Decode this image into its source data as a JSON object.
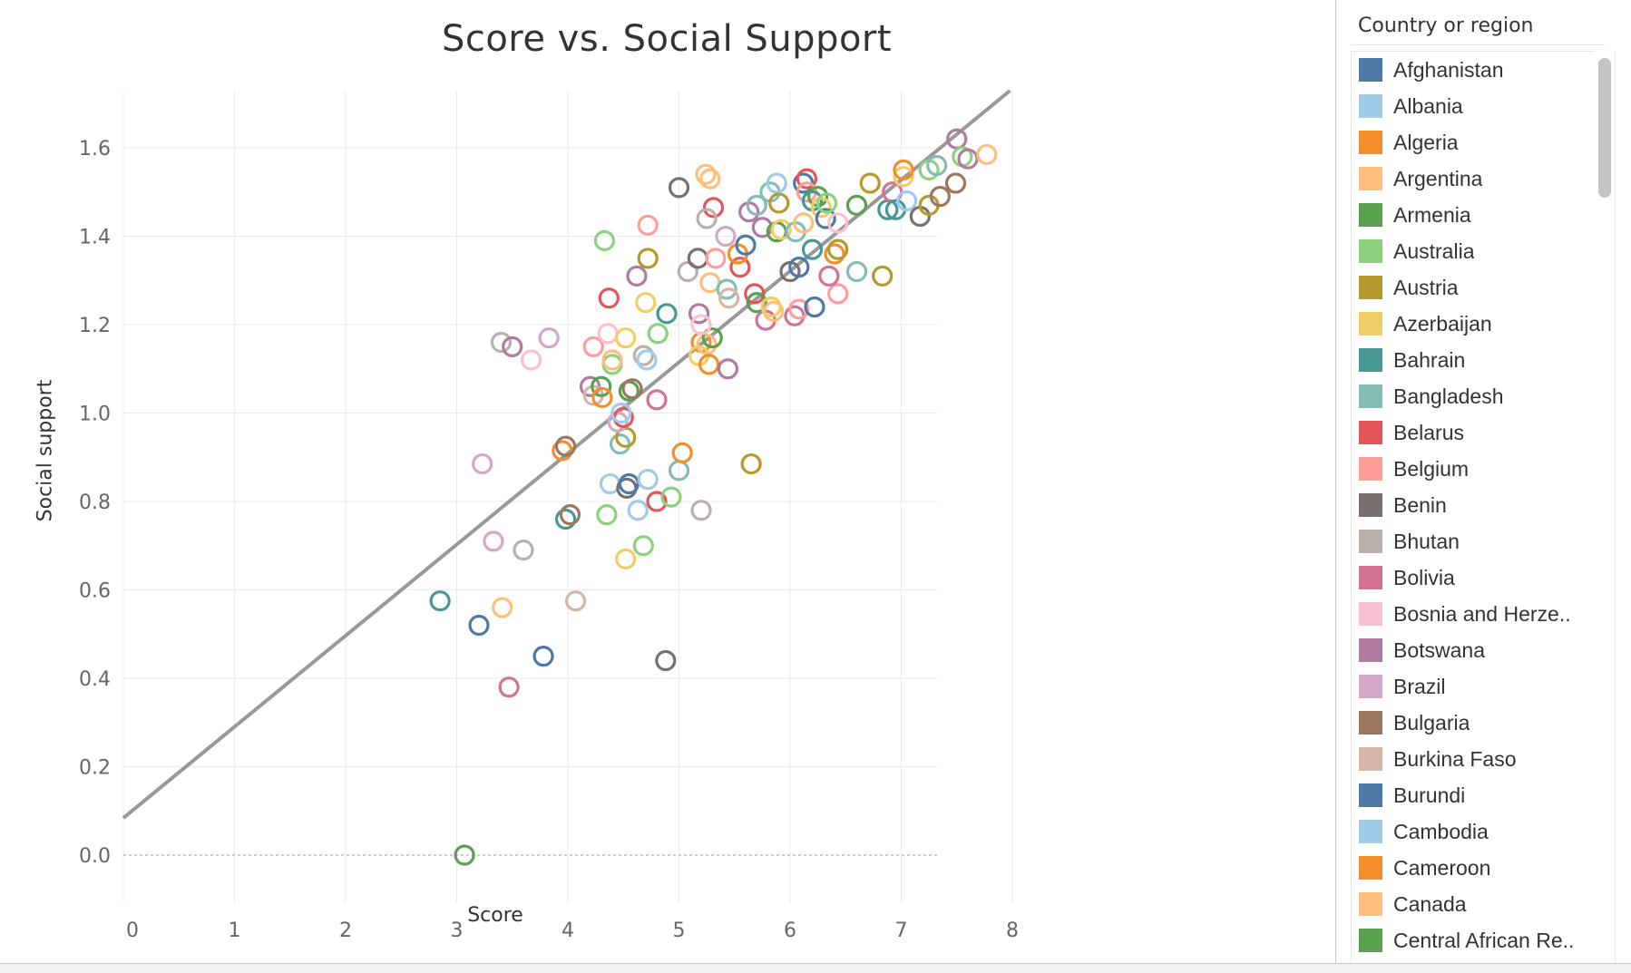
{
  "chart_data": {
    "type": "scatter",
    "title": "Score vs. Social Support",
    "xlabel": "Score",
    "ylabel": "Social support",
    "xlim": [
      0,
      8
    ],
    "ylim": [
      0,
      1.6
    ],
    "x_ticks": [
      0,
      1,
      2,
      3,
      4,
      5,
      6,
      7,
      8
    ],
    "y_ticks": [
      0.0,
      0.2,
      0.4,
      0.6,
      0.8,
      1.0,
      1.2,
      1.4,
      1.6
    ],
    "y_tick_labels": [
      "0.0",
      "0.2",
      "0.4",
      "0.6",
      "0.8",
      "1.0",
      "1.2",
      "1.4",
      "1.6"
    ],
    "grid": true,
    "zero_line": "dashed",
    "trend_line": {
      "slope": 0.2062,
      "intercept": 0.084,
      "color": "#999999"
    },
    "marker": "hollow-circle",
    "legend_position": "right",
    "palette": [
      "#4e79a7",
      "#a0cbe8",
      "#f28e2b",
      "#ffbe7d",
      "#59a14f",
      "#8cd17d",
      "#b6992d",
      "#f1ce63",
      "#499894",
      "#86bcb6",
      "#e15759",
      "#ff9d9a",
      "#79706e",
      "#bab0ac",
      "#d37295",
      "#fabfd2",
      "#b07aa1",
      "#d4a6c8",
      "#9d7660",
      "#d7b5a6"
    ],
    "points": [
      {
        "x": 3.07,
        "y": 0.0,
        "c": "#59a14f"
      },
      {
        "x": 2.85,
        "y": 0.575,
        "c": "#499894"
      },
      {
        "x": 3.2,
        "y": 0.52,
        "c": "#4e79a7"
      },
      {
        "x": 3.41,
        "y": 0.56,
        "c": "#ffbe7d"
      },
      {
        "x": 3.78,
        "y": 0.45,
        "c": "#4e79a7"
      },
      {
        "x": 3.47,
        "y": 0.38,
        "c": "#d37295"
      },
      {
        "x": 4.07,
        "y": 0.575,
        "c": "#d7b5a6"
      },
      {
        "x": 4.88,
        "y": 0.44,
        "c": "#79706e"
      },
      {
        "x": 3.33,
        "y": 0.71,
        "c": "#d4a6c8"
      },
      {
        "x": 3.6,
        "y": 0.69,
        "c": "#bab0ac"
      },
      {
        "x": 3.23,
        "y": 0.885,
        "c": "#d4a6c8"
      },
      {
        "x": 3.98,
        "y": 0.76,
        "c": "#499894"
      },
      {
        "x": 4.02,
        "y": 0.77,
        "c": "#9d7660"
      },
      {
        "x": 4.35,
        "y": 0.77,
        "c": "#8cd17d"
      },
      {
        "x": 4.52,
        "y": 0.67,
        "c": "#f1ce63"
      },
      {
        "x": 4.68,
        "y": 0.7,
        "c": "#8cd17d"
      },
      {
        "x": 4.63,
        "y": 0.78,
        "c": "#a0cbe8"
      },
      {
        "x": 4.38,
        "y": 0.84,
        "c": "#a0cbe8"
      },
      {
        "x": 4.53,
        "y": 0.83,
        "c": "#79706e"
      },
      {
        "x": 4.55,
        "y": 0.84,
        "c": "#4e79a7"
      },
      {
        "x": 4.72,
        "y": 0.85,
        "c": "#a0cbe8"
      },
      {
        "x": 4.8,
        "y": 0.8,
        "c": "#e15759"
      },
      {
        "x": 4.93,
        "y": 0.81,
        "c": "#8cd17d"
      },
      {
        "x": 5.0,
        "y": 0.87,
        "c": "#86bcb6"
      },
      {
        "x": 5.2,
        "y": 0.78,
        "c": "#bab0ac"
      },
      {
        "x": 5.03,
        "y": 0.91,
        "c": "#f28e2b"
      },
      {
        "x": 5.65,
        "y": 0.885,
        "c": "#b6992d"
      },
      {
        "x": 3.95,
        "y": 0.915,
        "c": "#f28e2b"
      },
      {
        "x": 3.98,
        "y": 0.925,
        "c": "#9d7660"
      },
      {
        "x": 4.47,
        "y": 0.93,
        "c": "#86bcb6"
      },
      {
        "x": 4.52,
        "y": 0.945,
        "c": "#b6992d"
      },
      {
        "x": 4.45,
        "y": 0.98,
        "c": "#d4a6c8"
      },
      {
        "x": 4.5,
        "y": 0.99,
        "c": "#e15759"
      },
      {
        "x": 4.48,
        "y": 1.0,
        "c": "#a0cbe8"
      },
      {
        "x": 4.8,
        "y": 1.03,
        "c": "#d37295"
      },
      {
        "x": 4.2,
        "y": 1.06,
        "c": "#b07aa1"
      },
      {
        "x": 4.23,
        "y": 1.04,
        "c": "#d7b5a6"
      },
      {
        "x": 4.3,
        "y": 1.06,
        "c": "#59a14f"
      },
      {
        "x": 4.31,
        "y": 1.035,
        "c": "#f28e2b"
      },
      {
        "x": 4.4,
        "y": 1.11,
        "c": "#8cd17d"
      },
      {
        "x": 4.55,
        "y": 1.05,
        "c": "#59a14f"
      },
      {
        "x": 4.58,
        "y": 1.055,
        "c": "#9d7660"
      },
      {
        "x": 3.4,
        "y": 1.16,
        "c": "#bab0ac"
      },
      {
        "x": 3.5,
        "y": 1.15,
        "c": "#b07aa1"
      },
      {
        "x": 3.67,
        "y": 1.12,
        "c": "#fabfd2"
      },
      {
        "x": 3.83,
        "y": 1.17,
        "c": "#d4a6c8"
      },
      {
        "x": 4.23,
        "y": 1.15,
        "c": "#ff9d9a"
      },
      {
        "x": 4.36,
        "y": 1.18,
        "c": "#fabfd2"
      },
      {
        "x": 4.4,
        "y": 1.12,
        "c": "#ffbe7d"
      },
      {
        "x": 4.52,
        "y": 1.17,
        "c": "#f1ce63"
      },
      {
        "x": 4.68,
        "y": 1.13,
        "c": "#bab0ac"
      },
      {
        "x": 4.71,
        "y": 1.12,
        "c": "#a0cbe8"
      },
      {
        "x": 4.81,
        "y": 1.18,
        "c": "#8cd17d"
      },
      {
        "x": 4.7,
        "y": 1.25,
        "c": "#f1ce63"
      },
      {
        "x": 4.37,
        "y": 1.26,
        "c": "#e15759"
      },
      {
        "x": 4.89,
        "y": 1.225,
        "c": "#499894"
      },
      {
        "x": 5.18,
        "y": 1.225,
        "c": "#b07aa1"
      },
      {
        "x": 5.2,
        "y": 1.16,
        "c": "#f28e2b"
      },
      {
        "x": 5.25,
        "y": 1.155,
        "c": "#ffbe7d"
      },
      {
        "x": 5.3,
        "y": 1.17,
        "c": "#59a14f"
      },
      {
        "x": 5.18,
        "y": 1.13,
        "c": "#f1ce63"
      },
      {
        "x": 5.27,
        "y": 1.11,
        "c": "#f28e2b"
      },
      {
        "x": 5.44,
        "y": 1.1,
        "c": "#b07aa1"
      },
      {
        "x": 5.2,
        "y": 1.2,
        "c": "#fabfd2"
      },
      {
        "x": 5.28,
        "y": 1.295,
        "c": "#ffbe7d"
      },
      {
        "x": 5.08,
        "y": 1.32,
        "c": "#bab0ac"
      },
      {
        "x": 5.17,
        "y": 1.35,
        "c": "#79706e"
      },
      {
        "x": 5.33,
        "y": 1.35,
        "c": "#ff9d9a"
      },
      {
        "x": 5.43,
        "y": 1.28,
        "c": "#86bcb6"
      },
      {
        "x": 5.45,
        "y": 1.26,
        "c": "#d7b5a6"
      },
      {
        "x": 5.55,
        "y": 1.33,
        "c": "#e15759"
      },
      {
        "x": 5.53,
        "y": 1.36,
        "c": "#f28e2b"
      },
      {
        "x": 5.6,
        "y": 1.38,
        "c": "#4e79a7"
      },
      {
        "x": 5.68,
        "y": 1.27,
        "c": "#e15759"
      },
      {
        "x": 5.7,
        "y": 1.25,
        "c": "#59a14f"
      },
      {
        "x": 5.78,
        "y": 1.21,
        "c": "#d37295"
      },
      {
        "x": 5.85,
        "y": 1.23,
        "c": "#ffbe7d"
      },
      {
        "x": 5.83,
        "y": 1.24,
        "c": "#f1ce63"
      },
      {
        "x": 6.04,
        "y": 1.22,
        "c": "#d37295"
      },
      {
        "x": 6.08,
        "y": 1.235,
        "c": "#ff9d9a"
      },
      {
        "x": 6.22,
        "y": 1.24,
        "c": "#4e79a7"
      },
      {
        "x": 6.43,
        "y": 1.27,
        "c": "#ff9d9a"
      },
      {
        "x": 6.0,
        "y": 1.32,
        "c": "#79706e"
      },
      {
        "x": 6.08,
        "y": 1.33,
        "c": "#4e79a7"
      },
      {
        "x": 6.35,
        "y": 1.31,
        "c": "#d37295"
      },
      {
        "x": 6.6,
        "y": 1.32,
        "c": "#86bcb6"
      },
      {
        "x": 6.83,
        "y": 1.31,
        "c": "#b6992d"
      },
      {
        "x": 4.72,
        "y": 1.35,
        "c": "#b6992d"
      },
      {
        "x": 4.62,
        "y": 1.31,
        "c": "#b07aa1"
      },
      {
        "x": 4.33,
        "y": 1.39,
        "c": "#8cd17d"
      },
      {
        "x": 4.72,
        "y": 1.425,
        "c": "#ff9d9a"
      },
      {
        "x": 5.0,
        "y": 1.51,
        "c": "#79706e"
      },
      {
        "x": 5.24,
        "y": 1.54,
        "c": "#ffbe7d"
      },
      {
        "x": 5.28,
        "y": 1.53,
        "c": "#ffbe7d"
      },
      {
        "x": 5.31,
        "y": 1.465,
        "c": "#e15759"
      },
      {
        "x": 5.25,
        "y": 1.44,
        "c": "#bab0ac"
      },
      {
        "x": 5.42,
        "y": 1.4,
        "c": "#d4a6c8"
      },
      {
        "x": 5.63,
        "y": 1.455,
        "c": "#b07aa1"
      },
      {
        "x": 5.7,
        "y": 1.47,
        "c": "#86bcb6"
      },
      {
        "x": 5.75,
        "y": 1.42,
        "c": "#b07aa1"
      },
      {
        "x": 5.82,
        "y": 1.5,
        "c": "#86bcb6"
      },
      {
        "x": 5.88,
        "y": 1.52,
        "c": "#a0cbe8"
      },
      {
        "x": 5.88,
        "y": 1.41,
        "c": "#59a14f"
      },
      {
        "x": 5.9,
        "y": 1.475,
        "c": "#b6992d"
      },
      {
        "x": 5.92,
        "y": 1.415,
        "c": "#f1ce63"
      },
      {
        "x": 6.05,
        "y": 1.41,
        "c": "#86bcb6"
      },
      {
        "x": 6.12,
        "y": 1.43,
        "c": "#ffbe7d"
      },
      {
        "x": 6.12,
        "y": 1.52,
        "c": "#4e79a7"
      },
      {
        "x": 6.15,
        "y": 1.53,
        "c": "#e15759"
      },
      {
        "x": 6.15,
        "y": 1.5,
        "c": "#ff9d9a"
      },
      {
        "x": 6.2,
        "y": 1.48,
        "c": "#499894"
      },
      {
        "x": 6.25,
        "y": 1.49,
        "c": "#59a14f"
      },
      {
        "x": 6.28,
        "y": 1.465,
        "c": "#f1ce63"
      },
      {
        "x": 6.32,
        "y": 1.44,
        "c": "#4e79a7"
      },
      {
        "x": 6.33,
        "y": 1.475,
        "c": "#8cd17d"
      },
      {
        "x": 6.43,
        "y": 1.43,
        "c": "#fabfd2"
      },
      {
        "x": 6.2,
        "y": 1.37,
        "c": "#499894"
      },
      {
        "x": 6.4,
        "y": 1.36,
        "c": "#f28e2b"
      },
      {
        "x": 6.43,
        "y": 1.37,
        "c": "#b6992d"
      },
      {
        "x": 6.6,
        "y": 1.47,
        "c": "#59a14f"
      },
      {
        "x": 6.72,
        "y": 1.52,
        "c": "#b6992d"
      },
      {
        "x": 6.88,
        "y": 1.46,
        "c": "#499894"
      },
      {
        "x": 6.92,
        "y": 1.5,
        "c": "#d37295"
      },
      {
        "x": 6.95,
        "y": 1.46,
        "c": "#499894"
      },
      {
        "x": 7.02,
        "y": 1.535,
        "c": "#f1ce63"
      },
      {
        "x": 7.02,
        "y": 1.55,
        "c": "#f28e2b"
      },
      {
        "x": 7.05,
        "y": 1.48,
        "c": "#a0cbe8"
      },
      {
        "x": 7.17,
        "y": 1.445,
        "c": "#79706e"
      },
      {
        "x": 7.25,
        "y": 1.47,
        "c": "#b6992d"
      },
      {
        "x": 7.25,
        "y": 1.55,
        "c": "#8cd17d"
      },
      {
        "x": 7.32,
        "y": 1.56,
        "c": "#86bcb6"
      },
      {
        "x": 7.35,
        "y": 1.49,
        "c": "#9d7660"
      },
      {
        "x": 7.49,
        "y": 1.52,
        "c": "#9d7660"
      },
      {
        "x": 7.5,
        "y": 1.62,
        "c": "#b07aa1"
      },
      {
        "x": 7.55,
        "y": 1.58,
        "c": "#8cd17d"
      },
      {
        "x": 7.6,
        "y": 1.575,
        "c": "#b07aa1"
      },
      {
        "x": 7.77,
        "y": 1.585,
        "c": "#ffbe7d"
      }
    ]
  },
  "legend": {
    "title": "Country or region",
    "items": [
      {
        "label": "Afghanistan",
        "color": "#4e79a7"
      },
      {
        "label": "Albania",
        "color": "#a0cbe8"
      },
      {
        "label": "Algeria",
        "color": "#f28e2b"
      },
      {
        "label": "Argentina",
        "color": "#ffbe7d"
      },
      {
        "label": "Armenia",
        "color": "#59a14f"
      },
      {
        "label": "Australia",
        "color": "#8cd17d"
      },
      {
        "label": "Austria",
        "color": "#b6992d"
      },
      {
        "label": "Azerbaijan",
        "color": "#f1ce63"
      },
      {
        "label": "Bahrain",
        "color": "#499894"
      },
      {
        "label": "Bangladesh",
        "color": "#86bcb6"
      },
      {
        "label": "Belarus",
        "color": "#e15759"
      },
      {
        "label": "Belgium",
        "color": "#ff9d9a"
      },
      {
        "label": "Benin",
        "color": "#79706e"
      },
      {
        "label": "Bhutan",
        "color": "#bab0ac"
      },
      {
        "label": "Bolivia",
        "color": "#d37295"
      },
      {
        "label": "Bosnia and Herze..",
        "color": "#fabfd2"
      },
      {
        "label": "Botswana",
        "color": "#b07aa1"
      },
      {
        "label": "Brazil",
        "color": "#d4a6c8"
      },
      {
        "label": "Bulgaria",
        "color": "#9d7660"
      },
      {
        "label": "Burkina Faso",
        "color": "#d7b5a6"
      },
      {
        "label": "Burundi",
        "color": "#4e79a7"
      },
      {
        "label": "Cambodia",
        "color": "#a0cbe8"
      },
      {
        "label": "Cameroon",
        "color": "#f28e2b"
      },
      {
        "label": "Canada",
        "color": "#ffbe7d"
      },
      {
        "label": "Central African Re..",
        "color": "#59a14f"
      }
    ]
  }
}
